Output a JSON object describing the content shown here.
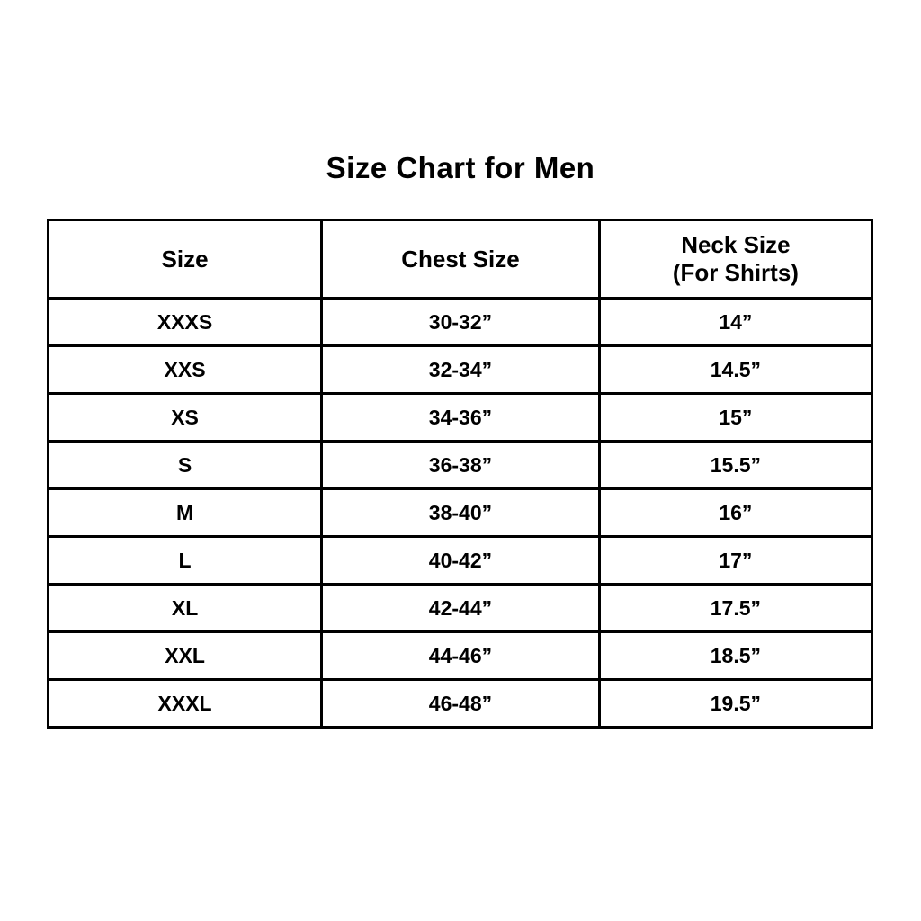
{
  "title": "Size Chart for Men",
  "table": {
    "headers": {
      "size": "Size",
      "chest": "Chest Size",
      "neck_line1": "Neck Size",
      "neck_line2": "(For Shirts)"
    }
  },
  "chart_data": {
    "type": "table",
    "title": "Size Chart for Men",
    "columns": [
      "Size",
      "Chest Size",
      "Neck Size (For Shirts)"
    ],
    "rows": [
      [
        "XXXS",
        "30-32”",
        "14”"
      ],
      [
        "XXS",
        "32-34”",
        "14.5”"
      ],
      [
        "XS",
        "34-36”",
        "15”"
      ],
      [
        "S",
        "36-38”",
        "15.5”"
      ],
      [
        "M",
        "38-40”",
        "16”"
      ],
      [
        "L",
        "40-42”",
        "17”"
      ],
      [
        "XL",
        "42-44”",
        "17.5”"
      ],
      [
        "XXL",
        "44-46”",
        "18.5”"
      ],
      [
        "XXXL",
        "46-48”",
        "19.5”"
      ]
    ],
    "text_color": "#000000",
    "border_color": "#000000",
    "background": "#ffffff"
  }
}
